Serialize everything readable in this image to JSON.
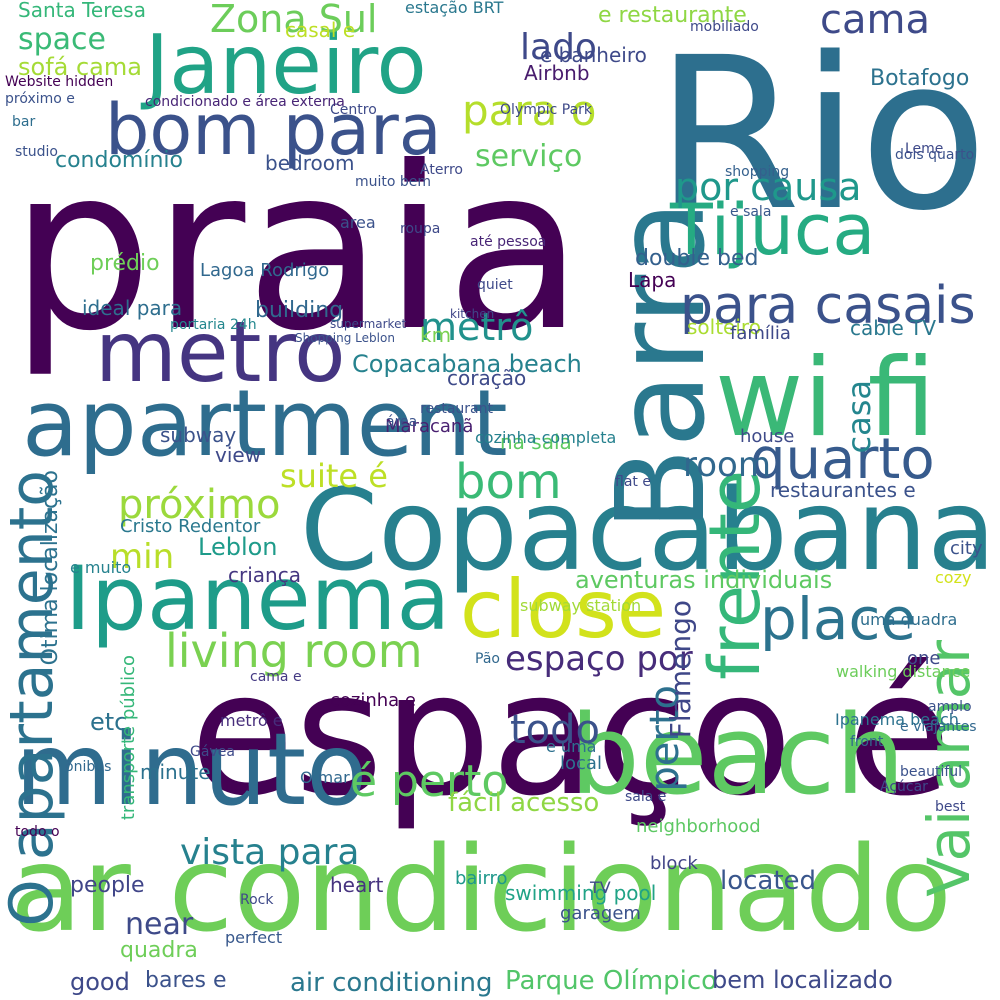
{
  "words": [
    {
      "text": "praia",
      "color": "#440154"
    },
    {
      "text": "espaço é",
      "color": "#440154"
    },
    {
      "text": "Rio",
      "color": "#2d6f8e"
    },
    {
      "text": "ar condicionado",
      "color": "#6ece58"
    },
    {
      "text": "Copacabana",
      "color": "#27808e"
    },
    {
      "text": "apartment",
      "color": "#2e6d8e"
    },
    {
      "text": "Barra",
      "color": "#2a788e"
    },
    {
      "text": "wi fi",
      "color": "#3ab877"
    },
    {
      "text": "metro",
      "color": "#453581"
    },
    {
      "text": "minuto",
      "color": "#2f6c8e"
    },
    {
      "text": "Janeiro",
      "color": "#20a386"
    },
    {
      "text": "beach",
      "color": "#5ec962"
    },
    {
      "text": "Ipanema",
      "color": "#1e9c89"
    },
    {
      "text": "close",
      "color": "#d2e21b"
    },
    {
      "text": "bom para",
      "color": "#3b528b"
    },
    {
      "text": "O apartamento",
      "color": "#2c728e"
    },
    {
      "text": "Tijuca",
      "color": "#25ab82"
    },
    {
      "text": "para casais",
      "color": "#3b528b"
    },
    {
      "text": "living room",
      "color": "#7ad151"
    },
    {
      "text": "quarto",
      "color": "#375b8d"
    },
    {
      "text": "place",
      "color": "#2c738e"
    },
    {
      "text": "frente",
      "color": "#35b779"
    },
    {
      "text": "cama",
      "color": "#3e4a89"
    },
    {
      "text": "para o",
      "color": "#b5de2b"
    },
    {
      "text": "por causa",
      "color": "#1f988b"
    },
    {
      "text": "bom",
      "color": "#3aba76"
    },
    {
      "text": "próximo",
      "color": "#9bd93c"
    },
    {
      "text": "metrô",
      "color": "#21918c"
    },
    {
      "text": "Zona Sul",
      "color": "#6ccd5a"
    },
    {
      "text": "espaço por",
      "color": "#472c7a"
    },
    {
      "text": "vista para",
      "color": "#26818e"
    },
    {
      "text": "é perto",
      "color": "#5ec962"
    },
    {
      "text": "todo",
      "color": "#3b528b"
    },
    {
      "text": "perto",
      "color": "#2d708e"
    },
    {
      "text": "Vai amar",
      "color": "#54c568"
    },
    {
      "text": "room",
      "color": "#31688e"
    },
    {
      "text": "casa",
      "color": "#24868e"
    },
    {
      "text": "suite é",
      "color": "#bddf26"
    },
    {
      "text": "min",
      "color": "#b8de29"
    },
    {
      "text": "serviço",
      "color": "#5ec962"
    },
    {
      "text": "lado",
      "color": "#3e4989"
    },
    {
      "text": "space",
      "color": "#3aba76"
    },
    {
      "text": "sofá cama",
      "color": "#a5db36"
    },
    {
      "text": "Botafogo",
      "color": "#2c728e"
    },
    {
      "text": "condomínio",
      "color": "#26818e"
    },
    {
      "text": "prédio",
      "color": "#6ece58"
    },
    {
      "text": "ideal para",
      "color": "#2e6e8e"
    },
    {
      "text": "Leblon",
      "color": "#1e9b8a"
    },
    {
      "text": "Flamengo",
      "color": "#3f4788"
    },
    {
      "text": "fácil acesso",
      "color": "#8fd744"
    },
    {
      "text": "neighborhood",
      "color": "#5dc863"
    },
    {
      "text": "located",
      "color": "#39568c"
    },
    {
      "text": "people",
      "color": "#404588"
    },
    {
      "text": "near",
      "color": "#3e4a89"
    },
    {
      "text": "quadra",
      "color": "#6ece58"
    },
    {
      "text": "good",
      "color": "#3e4989"
    },
    {
      "text": "bares e",
      "color": "#3b528b"
    },
    {
      "text": "air conditioning",
      "color": "#2a788e"
    },
    {
      "text": "Parque Olímpico",
      "color": "#52c569"
    },
    {
      "text": "bem localizado",
      "color": "#3e4989"
    },
    {
      "text": "restaurantes e",
      "color": "#3b528b"
    },
    {
      "text": "aventuras individuais",
      "color": "#5ec962"
    },
    {
      "text": "Copacabana beach",
      "color": "#26828e"
    },
    {
      "text": "building",
      "color": "#31688e"
    },
    {
      "text": "Lagoa Rodrigo",
      "color": "#31688e"
    },
    {
      "text": "bedroom",
      "color": "#3b528b"
    },
    {
      "text": "double bed",
      "color": "#34608d"
    },
    {
      "text": "solteiro",
      "color": "#aadc32"
    },
    {
      "text": "Lapa",
      "color": "#440154"
    },
    {
      "text": "Cristo Redentor",
      "color": "#2a788e"
    },
    {
      "text": "criança",
      "color": "#453781"
    },
    {
      "text": "coração",
      "color": "#3e4a89"
    },
    {
      "text": "Maracanã",
      "color": "#481f70"
    },
    {
      "text": "subway",
      "color": "#3b528b"
    },
    {
      "text": "view",
      "color": "#3e4989"
    },
    {
      "text": "cable TV",
      "color": "#2a788e"
    },
    {
      "text": "família",
      "color": "#3e4989"
    },
    {
      "text": "Airbnb",
      "color": "#481b6d"
    },
    {
      "text": "house",
      "color": "#3e4a89"
    },
    {
      "text": "minute",
      "color": "#2c718e"
    },
    {
      "text": "heart",
      "color": "#46337f"
    },
    {
      "text": "km",
      "color": "#7ad151"
    },
    {
      "text": "Santa Teresa",
      "color": "#35b779"
    },
    {
      "text": "estação BRT",
      "color": "#2a788e"
    },
    {
      "text": "e restaurante",
      "color": "#8fd744"
    },
    {
      "text": "casal e",
      "color": "#bddf26"
    },
    {
      "text": "e banheiro",
      "color": "#3e4989"
    },
    {
      "text": "subway station",
      "color": "#a2da37"
    },
    {
      "text": "na sala",
      "color": "#5ec962"
    },
    {
      "text": "one",
      "color": "#3e4989"
    },
    {
      "text": "uma quadra",
      "color": "#2e6e8e"
    },
    {
      "text": "walking distance",
      "color": "#6ccd5a"
    },
    {
      "text": "swimming pool",
      "color": "#20a386"
    },
    {
      "text": "e uma",
      "color": "#2d708e"
    },
    {
      "text": "bairro",
      "color": "#1f988b"
    },
    {
      "text": "garagem",
      "color": "#3b528b"
    },
    {
      "text": "block",
      "color": "#414487"
    },
    {
      "text": "cozinha e",
      "color": "#440154"
    },
    {
      "text": "local",
      "color": "#2d708e"
    },
    {
      "text": "city",
      "color": "#3b528b"
    },
    {
      "text": "Ipanema beach",
      "color": "#2c728e"
    },
    {
      "text": "metrô e",
      "color": "#472d7b"
    },
    {
      "text": "cozinha completa",
      "color": "#26818e"
    },
    {
      "text": "portaria 24h",
      "color": "#24878e"
    },
    {
      "text": "área",
      "color": "#3b528b"
    },
    {
      "text": "flat e",
      "color": "#3e4989"
    },
    {
      "text": "etc",
      "color": "#2c728e"
    },
    {
      "text": "e muito",
      "color": "#26828e"
    },
    {
      "text": "cama e",
      "color": "#443983"
    },
    {
      "text": "perfect",
      "color": "#38588c"
    },
    {
      "text": "Rock",
      "color": "#3e4989"
    },
    {
      "text": "fica",
      "color": "#440154"
    },
    {
      "text": "Gávea",
      "color": "#3e4989"
    },
    {
      "text": "TV",
      "color": "#3e4989"
    },
    {
      "text": "O mar",
      "color": "#31688e"
    },
    {
      "text": "todo o",
      "color": "#440154"
    },
    {
      "text": "Website hidden",
      "color": "#440154"
    },
    {
      "text": "próximo e",
      "color": "#3b528b"
    },
    {
      "text": "studio",
      "color": "#3b528b"
    },
    {
      "text": "bar",
      "color": "#2e6e8e"
    },
    {
      "text": "Centro",
      "color": "#3e4a89"
    },
    {
      "text": "condicionado e área externa",
      "color": "#482576"
    },
    {
      "text": "Olympic Park",
      "color": "#3e4989"
    },
    {
      "text": "beautiful",
      "color": "#3b528b"
    },
    {
      "text": "front",
      "color": "#31688e"
    },
    {
      "text": "amplo",
      "color": "#3b528b"
    },
    {
      "text": "best",
      "color": "#3e4989"
    },
    {
      "text": "quiet",
      "color": "#3e4989"
    },
    {
      "text": "kitchen",
      "color": "#404688"
    },
    {
      "text": "roupa",
      "color": "#3e4989"
    },
    {
      "text": "até pessoa",
      "color": "#482576"
    },
    {
      "text": "muito bem",
      "color": "#3b528b"
    },
    {
      "text": "shopping",
      "color": "#34608d"
    },
    {
      "text": "e sala",
      "color": "#38588c"
    },
    {
      "text": "sala e",
      "color": "#3e4989"
    },
    {
      "text": "Açúcar",
      "color": "#3e4989"
    },
    {
      "text": "e viajantes",
      "color": "#31688e"
    },
    {
      "text": "Pão",
      "color": "#31688e"
    },
    {
      "text": "area",
      "color": "#3b528b"
    },
    {
      "text": "mobiliado",
      "color": "#3e4989"
    },
    {
      "text": "transporte público",
      "color": "#35b779"
    },
    {
      "text": "Ótima localização",
      "color": "#2c728e"
    },
    {
      "text": "restaurant",
      "color": "#3b528b"
    },
    {
      "text": "ônibus",
      "color": "#31688e"
    },
    {
      "text": "Aterro",
      "color": "#3e4989"
    },
    {
      "text": "supermarket",
      "color": "#3e4989"
    },
    {
      "text": "Shopping Leblon",
      "color": "#3b528b"
    },
    {
      "text": "dois quarto",
      "color": "#3b528b"
    },
    {
      "text": "cozy",
      "color": "#d2e21b"
    },
    {
      "text": "Leme",
      "color": "#3e4989"
    }
  ]
}
